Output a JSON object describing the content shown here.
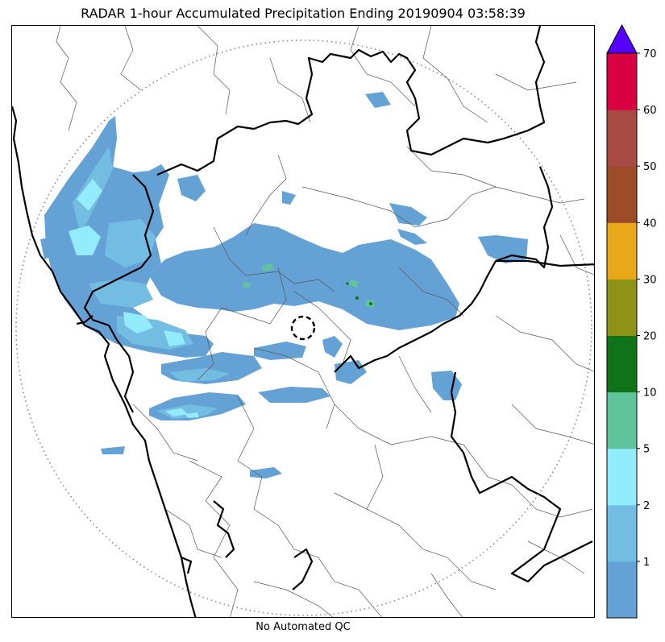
{
  "title": "RADAR 1-hour Accumulated Precipitation Ending 20190904 03:58:39",
  "footer": "No Automated QC",
  "colorbar": {
    "extend": "max",
    "extend_color": "#5500ff",
    "levels": [
      {
        "label": "",
        "color": "#64a2d6"
      },
      {
        "label": "1",
        "color": "#73bde3"
      },
      {
        "label": "2",
        "color": "#93ecfb"
      },
      {
        "label": "5",
        "color": "#5fc49b"
      },
      {
        "label": "10",
        "color": "#0f7319"
      },
      {
        "label": "20",
        "color": "#8c9317"
      },
      {
        "label": "30",
        "color": "#e8a81a"
      },
      {
        "label": "40",
        "color": "#9c4c26"
      },
      {
        "label": "50",
        "color": "#a84a44"
      },
      {
        "label": "60",
        "color": "#d80042"
      }
    ],
    "top_label": "70"
  }
}
